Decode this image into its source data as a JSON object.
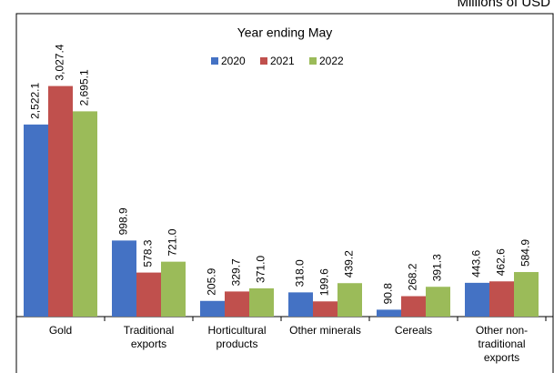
{
  "chart_data": {
    "type": "bar",
    "title": "Year ending May",
    "unit_label": "Millions of USD",
    "categories": [
      "Gold",
      "Traditional exports",
      "Horticultural products",
      "Other minerals",
      "Cereals",
      "Other non-traditional exports"
    ],
    "series": [
      {
        "name": "2020",
        "color": "#4472c4",
        "values": [
          2522.1,
          998.9,
          205.9,
          318.0,
          90.8,
          443.6
        ],
        "value_labels": [
          "2,522.1",
          "998.9",
          "205.9",
          "318.0",
          "90.8",
          "443.6"
        ]
      },
      {
        "name": "2021",
        "color": "#c0504d",
        "values": [
          3027.4,
          578.3,
          329.7,
          199.6,
          268.2,
          462.6
        ],
        "value_labels": [
          "3,027.4",
          "578.3",
          "329.7",
          "199.6",
          "268.2",
          "462.6"
        ]
      },
      {
        "name": "2022",
        "color": "#9bbb59",
        "values": [
          2695.1,
          721.0,
          371.0,
          439.2,
          391.3,
          584.9
        ],
        "value_labels": [
          "2,695.1",
          "721.0",
          "371.0",
          "439.2",
          "391.3",
          "584.9"
        ]
      }
    ],
    "ylim": [
      0,
      3500
    ]
  }
}
